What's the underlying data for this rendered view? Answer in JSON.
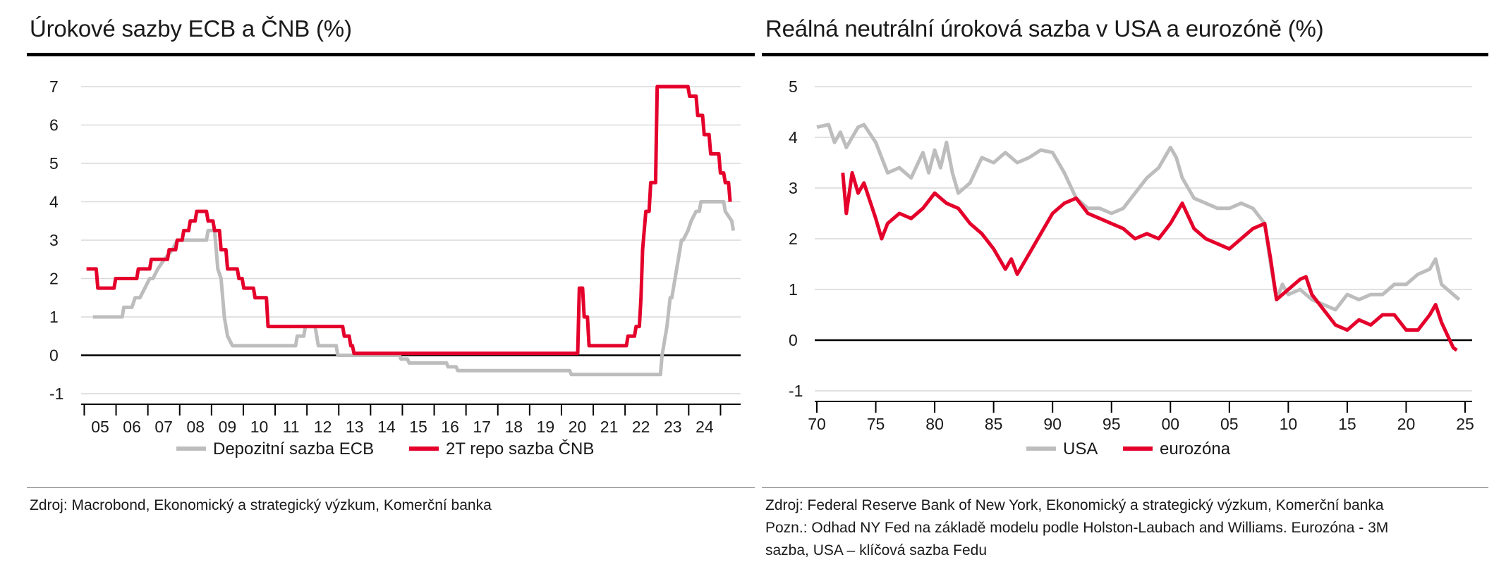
{
  "colors": {
    "gray": "#bdbdbd",
    "red": "#e4002b",
    "grid": "#d9d9d9",
    "axis": "#000000"
  },
  "left": {
    "title": "Úrokové sazby ECB a ČNB (%)",
    "source": "Zdroj: Macrobond, Ekonomický a strategický výzkum, Komerční banka"
  },
  "right": {
    "title": "Reálná neutrální úroková sazba v USA a eurozóně (%)",
    "source_lines": [
      "Zdroj: Federal Reserve Bank of New York, Ekonomický a strategický výzkum, Komerční banka",
      "Pozn.: Odhad NY Fed na základě modelu podle Holston-Laubach and Williams. Eurozóna - 3M",
      "sazba, USA – klíčová sazba Fedu"
    ]
  },
  "chart_data": [
    {
      "type": "line",
      "title": "Úrokové sazby ECB a ČNB (%)",
      "xlabel": "",
      "ylabel": "",
      "ylim": [
        -1,
        7
      ],
      "yticks": [
        -1,
        0,
        1,
        2,
        3,
        4,
        5,
        6,
        7
      ],
      "xlim": [
        2004.7,
        2024.8
      ],
      "xtick_labels": [
        "05",
        "06",
        "07",
        "08",
        "09",
        "10",
        "11",
        "12",
        "13",
        "14",
        "15",
        "16",
        "17",
        "18",
        "19",
        "20",
        "21",
        "22",
        "23",
        "24"
      ],
      "grid": true,
      "legend": "bottom",
      "series": [
        {
          "name": "Depozitní sazba ECB",
          "color": "#bdbdbd",
          "x": [
            2005.0,
            2005.9,
            2005.95,
            2006.2,
            2006.3,
            2006.45,
            2006.6,
            2006.75,
            2006.85,
            2007.0,
            2007.2,
            2007.45,
            2007.6,
            2008.5,
            2008.55,
            2008.75,
            2008.8,
            2008.85,
            2008.95,
            2009.05,
            2009.15,
            2009.3,
            2009.4,
            2011.25,
            2011.3,
            2011.5,
            2011.55,
            2011.85,
            2011.9,
            2011.95,
            2012.5,
            2012.55,
            2013.3,
            2013.35,
            2013.8,
            2013.85,
            2014.45,
            2014.5,
            2014.7,
            2014.75,
            2015.9,
            2015.95,
            2016.2,
            2016.25,
            2019.7,
            2019.75,
            2022.5,
            2022.55,
            2022.7,
            2022.8,
            2022.85,
            2022.95,
            2023.05,
            2023.15,
            2023.2,
            2023.35,
            2023.45,
            2023.6,
            2023.7,
            2023.75,
            2024.45,
            2024.5,
            2024.7,
            2024.75
          ],
          "y": [
            1.0,
            1.0,
            1.25,
            1.25,
            1.5,
            1.5,
            1.75,
            2.0,
            2.0,
            2.25,
            2.5,
            2.75,
            3.0,
            3.0,
            3.25,
            3.25,
            2.75,
            2.25,
            2.0,
            1.0,
            0.5,
            0.25,
            0.25,
            0.25,
            0.5,
            0.5,
            0.75,
            0.75,
            0.5,
            0.25,
            0.25,
            0.0,
            0.0,
            0.0,
            0.0,
            0.0,
            0.0,
            -0.1,
            -0.1,
            -0.2,
            -0.2,
            -0.3,
            -0.3,
            -0.4,
            -0.4,
            -0.5,
            -0.5,
            0.0,
            0.75,
            1.5,
            1.5,
            2.0,
            2.5,
            3.0,
            3.0,
            3.25,
            3.5,
            3.75,
            3.75,
            4.0,
            4.0,
            3.75,
            3.5,
            3.25
          ]
        },
        {
          "name": "2T repo sazba ČNB",
          "color": "#e4002b",
          "x": [
            2004.8,
            2005.1,
            2005.15,
            2005.65,
            2005.7,
            2006.35,
            2006.4,
            2006.75,
            2006.8,
            2007.3,
            2007.35,
            2007.55,
            2007.6,
            2007.75,
            2007.8,
            2007.95,
            2008.0,
            2008.15,
            2008.2,
            2008.5,
            2008.55,
            2008.7,
            2008.75,
            2008.9,
            2008.95,
            2009.1,
            2009.15,
            2009.45,
            2009.5,
            2009.6,
            2009.65,
            2009.95,
            2010.0,
            2010.35,
            2010.4,
            2012.7,
            2012.75,
            2012.9,
            2012.95,
            2013.0,
            2013.05,
            2019.95,
            2020.0,
            2020.1,
            2020.15,
            2020.25,
            2020.3,
            2021.45,
            2021.5,
            2021.7,
            2021.75,
            2021.85,
            2021.9,
            2021.95,
            2022.05,
            2022.15,
            2022.2,
            2022.35,
            2022.4,
            2023.35,
            2023.4,
            2023.6,
            2023.65,
            2023.8,
            2023.85,
            2024.0,
            2024.05,
            2024.3,
            2024.35,
            2024.45,
            2024.5,
            2024.6,
            2024.65
          ],
          "y": [
            2.25,
            2.25,
            1.75,
            1.75,
            2.0,
            2.0,
            2.25,
            2.25,
            2.5,
            2.5,
            2.75,
            2.75,
            3.0,
            3.0,
            3.25,
            3.25,
            3.5,
            3.5,
            3.75,
            3.75,
            3.5,
            3.5,
            3.25,
            3.25,
            2.75,
            2.75,
            2.25,
            2.25,
            2.0,
            2.0,
            1.75,
            1.75,
            1.5,
            1.5,
            0.75,
            0.75,
            0.5,
            0.5,
            0.25,
            0.25,
            0.05,
            0.05,
            1.75,
            1.75,
            1.0,
            1.0,
            0.25,
            0.25,
            0.5,
            0.5,
            0.75,
            0.75,
            1.5,
            2.75,
            3.75,
            3.75,
            4.5,
            4.5,
            7.0,
            7.0,
            6.75,
            6.75,
            6.25,
            6.25,
            5.75,
            5.75,
            5.25,
            5.25,
            4.75,
            4.75,
            4.5,
            4.5,
            4.0
          ]
        }
      ]
    },
    {
      "type": "line",
      "title": "Reálná neutrální úroková sazba v USA a eurozóně (%)",
      "xlabel": "",
      "ylabel": "",
      "ylim": [
        -1,
        5
      ],
      "yticks": [
        -1,
        0,
        1,
        2,
        3,
        4,
        5
      ],
      "xlim": [
        1970,
        2025
      ],
      "xtick_labels": [
        "70",
        "75",
        "80",
        "85",
        "90",
        "95",
        "00",
        "05",
        "10",
        "15",
        "20",
        "25"
      ],
      "grid": true,
      "legend": "bottom",
      "series": [
        {
          "name": "USA",
          "color": "#bdbdbd",
          "x": [
            1970.0,
            1971.0,
            1971.5,
            1972.0,
            1972.5,
            1973.0,
            1973.5,
            1974.0,
            1975.0,
            1976.0,
            1977.0,
            1978.0,
            1979.0,
            1979.5,
            1980.0,
            1980.5,
            1981.0,
            1981.5,
            1982.0,
            1982.5,
            1983.0,
            1984.0,
            1985.0,
            1986.0,
            1987.0,
            1988.0,
            1989.0,
            1990.0,
            1991.0,
            1992.0,
            1993.0,
            1994.0,
            1995.0,
            1996.0,
            1997.0,
            1998.0,
            1999.0,
            2000.0,
            2000.5,
            2001.0,
            2002.0,
            2003.0,
            2004.0,
            2005.0,
            2006.0,
            2007.0,
            2008.0,
            2008.5,
            2009.0,
            2009.5,
            2010.0,
            2011.0,
            2012.0,
            2013.0,
            2014.0,
            2015.0,
            2016.0,
            2017.0,
            2018.0,
            2019.0,
            2020.0,
            2021.0,
            2022.0,
            2022.5,
            2023.0,
            2023.5,
            2024.0,
            2024.5
          ],
          "y": [
            4.2,
            4.25,
            3.9,
            4.1,
            3.8,
            4.0,
            4.2,
            4.25,
            3.9,
            3.3,
            3.4,
            3.2,
            3.7,
            3.3,
            3.75,
            3.4,
            3.9,
            3.3,
            2.9,
            3.0,
            3.1,
            3.6,
            3.5,
            3.7,
            3.5,
            3.6,
            3.75,
            3.7,
            3.3,
            2.8,
            2.6,
            2.6,
            2.5,
            2.6,
            2.9,
            3.2,
            3.4,
            3.8,
            3.6,
            3.2,
            2.8,
            2.7,
            2.6,
            2.6,
            2.7,
            2.6,
            2.3,
            1.5,
            0.8,
            1.1,
            0.9,
            1.0,
            0.8,
            0.7,
            0.6,
            0.9,
            0.8,
            0.9,
            0.9,
            1.1,
            1.1,
            1.3,
            1.4,
            1.6,
            1.1,
            1.0,
            0.9,
            0.8
          ]
        },
        {
          "name": "eurozóna",
          "color": "#e4002b",
          "x": [
            1972.2,
            1972.5,
            1973.0,
            1973.5,
            1974.0,
            1975.0,
            1975.5,
            1976.0,
            1977.0,
            1978.0,
            1979.0,
            1980.0,
            1981.0,
            1982.0,
            1983.0,
            1984.0,
            1985.0,
            1986.0,
            1986.5,
            1987.0,
            1988.0,
            1989.0,
            1990.0,
            1991.0,
            1992.0,
            1993.0,
            1994.0,
            1995.0,
            1996.0,
            1997.0,
            1998.0,
            1999.0,
            2000.0,
            2001.0,
            2002.0,
            2003.0,
            2004.0,
            2005.0,
            2006.0,
            2007.0,
            2008.0,
            2008.5,
            2009.0,
            2010.0,
            2011.0,
            2011.5,
            2012.0,
            2013.0,
            2014.0,
            2015.0,
            2016.0,
            2017.0,
            2018.0,
            2019.0,
            2020.0,
            2021.0,
            2022.0,
            2022.5,
            2023.0,
            2023.5,
            2024.0,
            2024.3
          ],
          "y": [
            3.3,
            2.5,
            3.3,
            2.9,
            3.1,
            2.4,
            2.0,
            2.3,
            2.5,
            2.4,
            2.6,
            2.9,
            2.7,
            2.6,
            2.3,
            2.1,
            1.8,
            1.4,
            1.6,
            1.3,
            1.7,
            2.1,
            2.5,
            2.7,
            2.8,
            2.5,
            2.4,
            2.3,
            2.2,
            2.0,
            2.1,
            2.0,
            2.3,
            2.7,
            2.2,
            2.0,
            1.9,
            1.8,
            2.0,
            2.2,
            2.3,
            1.6,
            0.8,
            1.0,
            1.2,
            1.25,
            0.9,
            0.6,
            0.3,
            0.2,
            0.4,
            0.3,
            0.5,
            0.5,
            0.2,
            0.2,
            0.5,
            0.7,
            0.35,
            0.1,
            -0.15,
            -0.2
          ]
        }
      ]
    }
  ]
}
